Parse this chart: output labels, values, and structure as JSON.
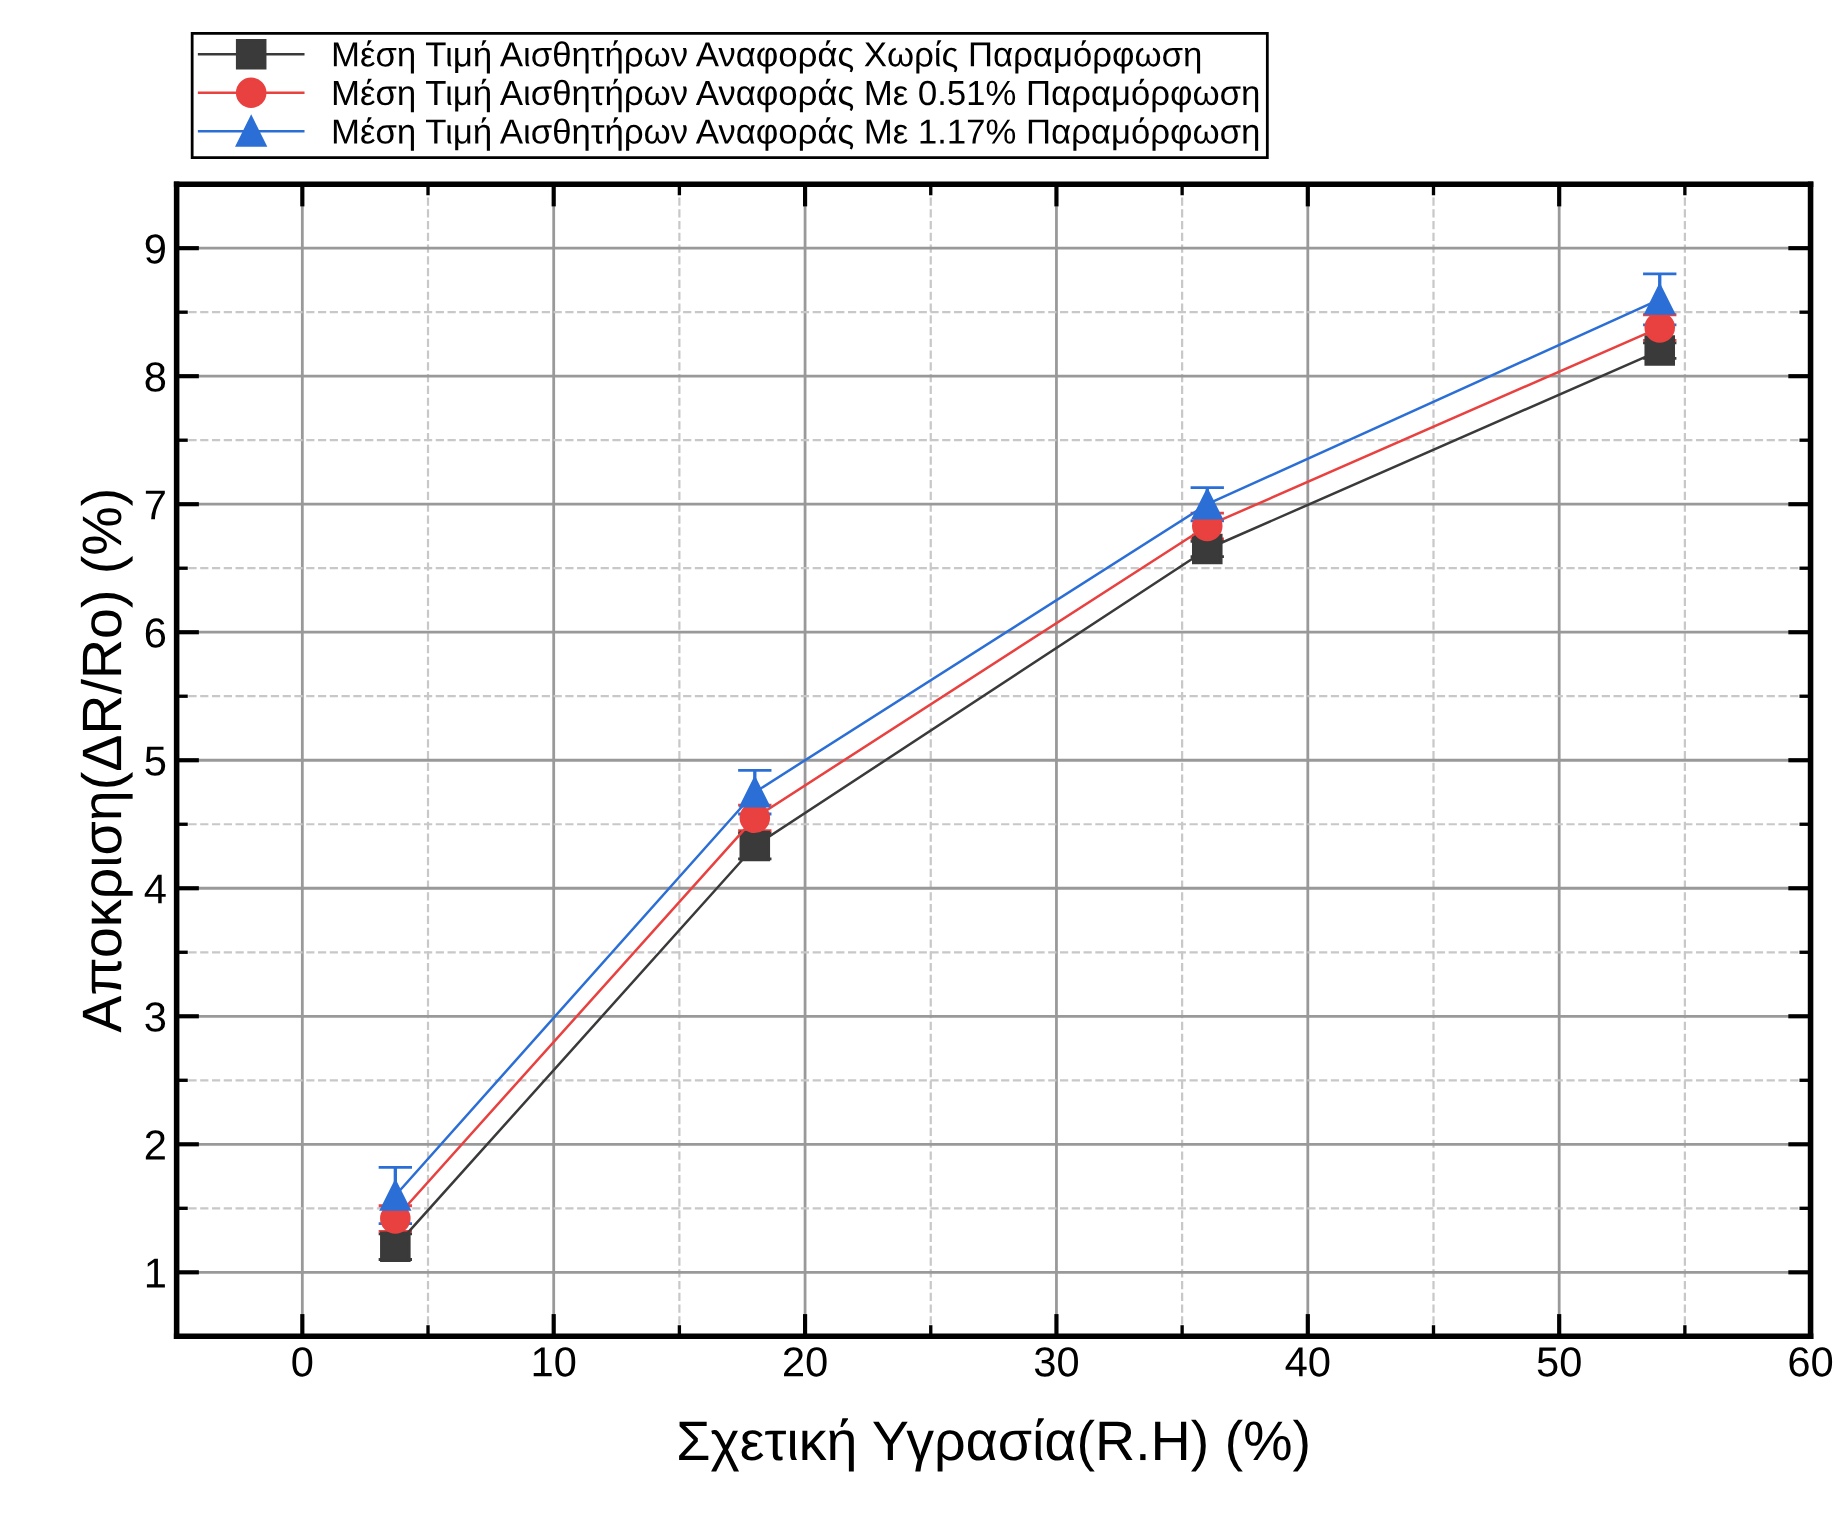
{
  "chart_data": {
    "type": "line",
    "xlabel": "Σχετική Υγρασία(R.H) (%)",
    "ylabel": "Αποκριση(ΔR/Ro) (%)",
    "x": [
      3.7,
      18,
      36,
      54
    ],
    "series": [
      {
        "name": "Μέση Τιμή Αισθητήρων Αναφοράς Χωρίς Παραμόρφωση",
        "color": "#3a3a3a",
        "marker": "square",
        "values": [
          1.2,
          4.33,
          6.65,
          8.2
        ],
        "errors": [
          0.1,
          0.1,
          0.06,
          0.06
        ]
      },
      {
        "name": "Μέση Τιμή Αισθητήρων Αναφοράς Με 0.51% Παραμόρφωση",
        "color": "#e8413f",
        "marker": "circle",
        "values": [
          1.42,
          4.55,
          6.83,
          8.38
        ],
        "errors": [
          0.1,
          0.1,
          0.1,
          0.1
        ]
      },
      {
        "name": "Μέση Τιμή Αισθητήρων Αναφοράς Με 1.17% Παραμόρφωση",
        "color": "#2b6fd6",
        "marker": "triangle",
        "values": [
          1.6,
          4.75,
          7.0,
          8.6
        ],
        "errors": [
          0.22,
          0.17,
          0.13,
          0.2
        ]
      }
    ],
    "xlim": [
      -5,
      60
    ],
    "xticks": [
      0,
      10,
      20,
      30,
      40,
      50,
      60
    ],
    "ylim": [
      0.5,
      9.5
    ],
    "yticks": [
      1,
      2,
      3,
      4,
      5,
      6,
      7,
      8,
      9
    ],
    "grid": true,
    "legend": "top left",
    "line_style": "solid"
  }
}
